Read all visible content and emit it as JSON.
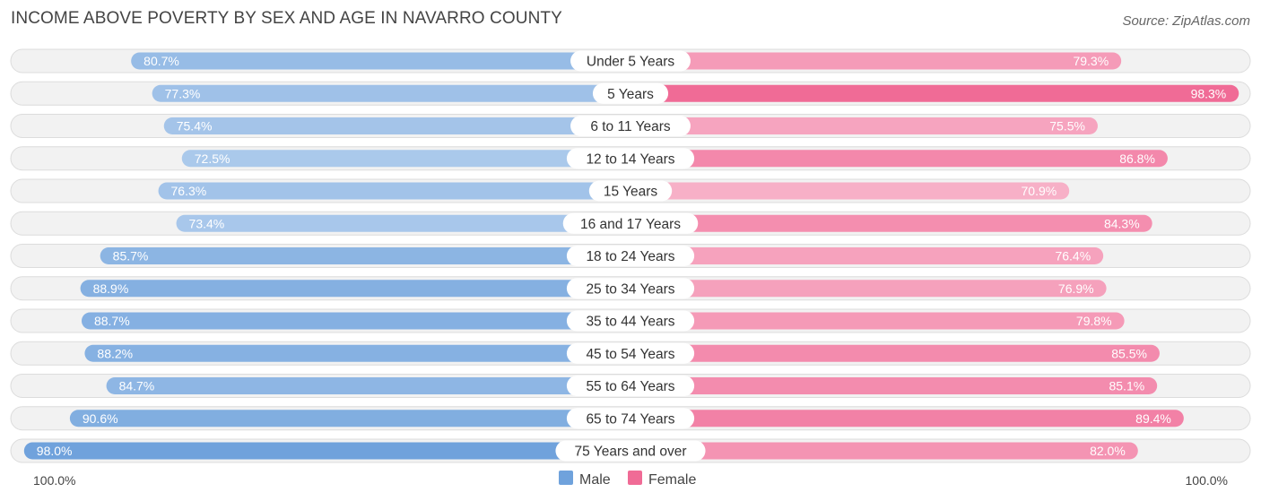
{
  "chart_data": {
    "type": "bar",
    "orientation": "horizontal-diverging",
    "title": "INCOME ABOVE POVERTY BY SEX AND AGE IN NAVARRO COUNTY",
    "source": "Source: ZipAtlas.com",
    "categories": [
      "Under 5 Years",
      "5 Years",
      "6 to 11 Years",
      "12 to 14 Years",
      "15 Years",
      "16 and 17 Years",
      "18 to 24 Years",
      "25 to 34 Years",
      "35 to 44 Years",
      "45 to 54 Years",
      "55 to 64 Years",
      "65 to 74 Years",
      "75 Years and over"
    ],
    "series": [
      {
        "name": "Male",
        "values": [
          80.7,
          77.3,
          75.4,
          72.5,
          76.3,
          73.4,
          85.7,
          88.9,
          88.7,
          88.2,
          84.7,
          90.6,
          98.0
        ],
        "labels": [
          "80.7%",
          "77.3%",
          "75.4%",
          "72.5%",
          "76.3%",
          "73.4%",
          "85.7%",
          "88.9%",
          "88.7%",
          "88.2%",
          "84.7%",
          "90.6%",
          "98.0%"
        ],
        "color_light": "#aecbec",
        "color_dark": "#6fa2dc"
      },
      {
        "name": "Female",
        "values": [
          79.3,
          98.3,
          75.5,
          86.8,
          70.9,
          84.3,
          76.4,
          76.9,
          79.8,
          85.5,
          85.1,
          89.4,
          82.0
        ],
        "labels": [
          "79.3%",
          "98.3%",
          "75.5%",
          "86.8%",
          "70.9%",
          "84.3%",
          "76.4%",
          "76.9%",
          "79.8%",
          "85.5%",
          "85.1%",
          "89.4%",
          "82.0%"
        ],
        "color_light": "#f7b0c7",
        "color_dark": "#f06b96"
      }
    ],
    "xlim": [
      0,
      100
    ],
    "axis_left_label": "100.0%",
    "axis_right_label": "100.0%",
    "legend": [
      "Male",
      "Female"
    ],
    "legend_position": "bottom-center"
  }
}
